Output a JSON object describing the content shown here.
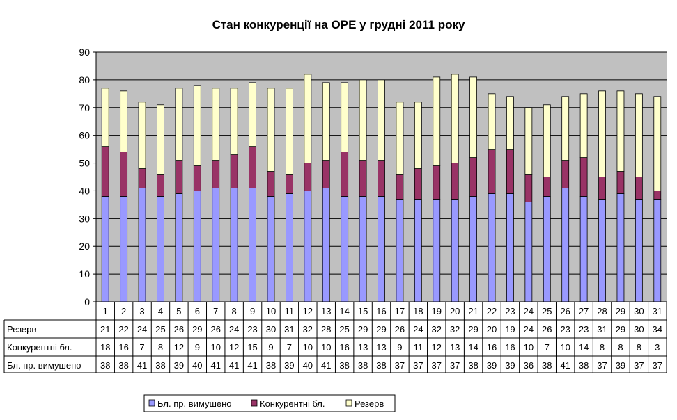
{
  "chart_data": {
    "type": "bar",
    "stacked": true,
    "title": "Стан конкуренції на ОРЕ  у грудні 2011 року",
    "categories": [
      "1",
      "2",
      "3",
      "4",
      "5",
      "6",
      "7",
      "8",
      "9",
      "10",
      "11",
      "12",
      "13",
      "14",
      "15",
      "16",
      "17",
      "18",
      "19",
      "20",
      "21",
      "22",
      "23",
      "24",
      "25",
      "26",
      "27",
      "28",
      "29",
      "30",
      "31"
    ],
    "series": [
      {
        "name": "Бл. пр. вимушено",
        "color": "#9999FF",
        "values": [
          38,
          38,
          41,
          38,
          39,
          40,
          41,
          41,
          41,
          38,
          39,
          40,
          41,
          38,
          38,
          38,
          37,
          37,
          37,
          37,
          38,
          39,
          39,
          36,
          38,
          41,
          38,
          37,
          39,
          37,
          37
        ]
      },
      {
        "name": "Конкурентні бл.",
        "color": "#993366",
        "values": [
          18,
          16,
          7,
          8,
          12,
          9,
          10,
          12,
          15,
          9,
          7,
          10,
          10,
          16,
          13,
          13,
          9,
          11,
          12,
          13,
          14,
          16,
          16,
          10,
          7,
          10,
          14,
          8,
          8,
          8,
          3
        ]
      },
      {
        "name": "Резерв",
        "color": "#FFFFCC",
        "values": [
          21,
          22,
          24,
          25,
          26,
          29,
          26,
          24,
          23,
          30,
          31,
          32,
          28,
          25,
          29,
          29,
          26,
          24,
          32,
          32,
          29,
          20,
          19,
          24,
          26,
          23,
          23,
          31,
          29,
          30,
          34
        ]
      }
    ],
    "ylim": [
      0,
      90
    ],
    "yticks": [
      0,
      10,
      20,
      30,
      40,
      50,
      60,
      70,
      80,
      90
    ],
    "grid": true,
    "plot_background": "#C0C0C0",
    "legend_position": "bottom",
    "data_table_rows": [
      "Резерв",
      "Конкурентні бл.",
      "Бл. пр. вимушено"
    ]
  }
}
